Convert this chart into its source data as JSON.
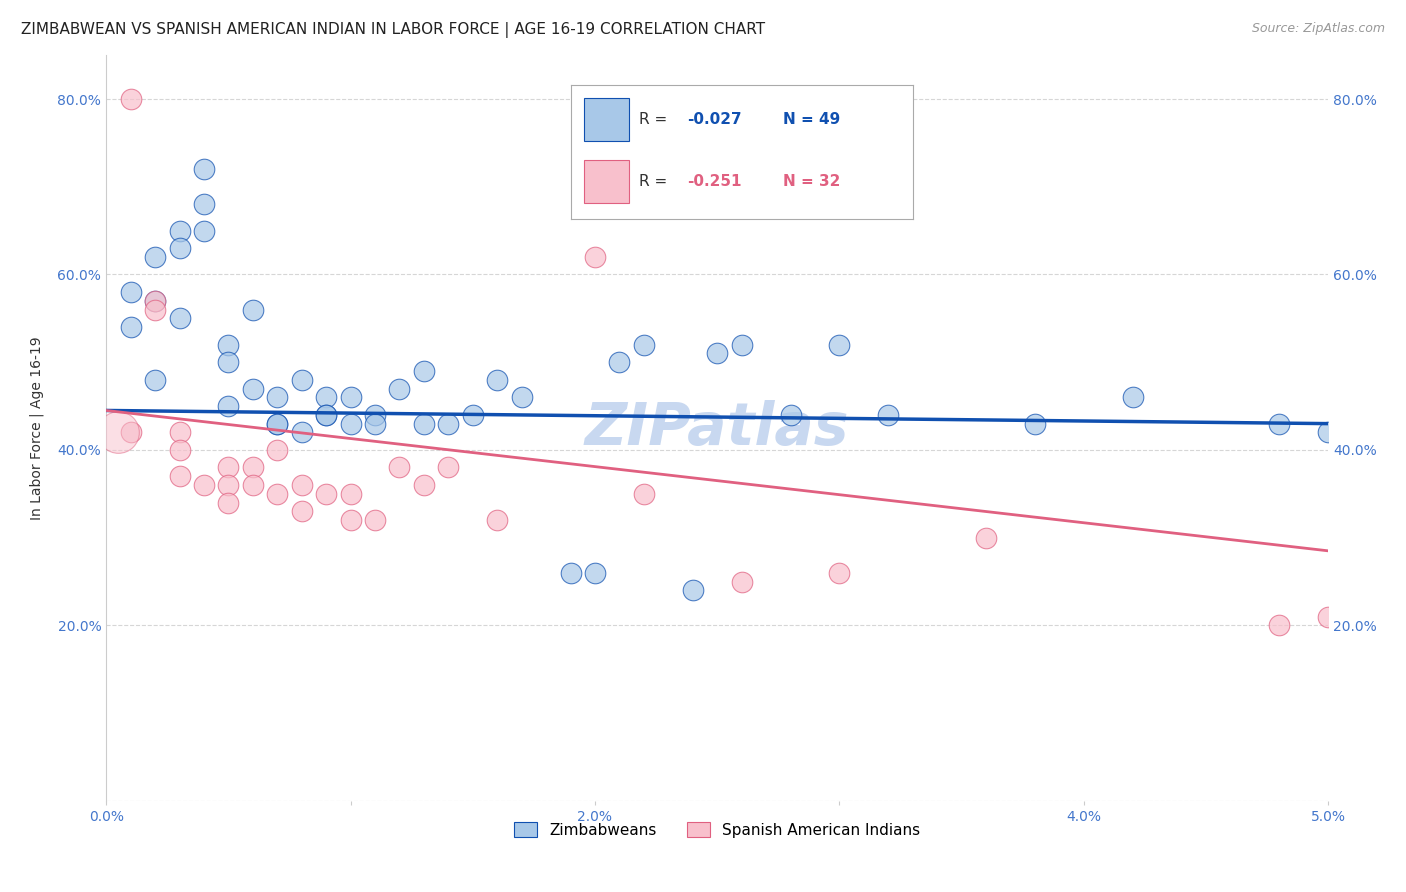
{
  "title": "ZIMBABWEAN VS SPANISH AMERICAN INDIAN IN LABOR FORCE | AGE 16-19 CORRELATION CHART",
  "source": "Source: ZipAtlas.com",
  "ylabel": "In Labor Force | Age 16-19",
  "xlim": [
    0.0,
    0.05
  ],
  "ylim": [
    0.0,
    0.85
  ],
  "yticks": [
    0.0,
    0.2,
    0.4,
    0.6,
    0.8
  ],
  "ytick_labels": [
    "",
    "20.0%",
    "40.0%",
    "60.0%",
    "80.0%"
  ],
  "xticks": [
    0.0,
    0.01,
    0.02,
    0.03,
    0.04,
    0.05
  ],
  "xtick_labels": [
    "0.0%",
    "",
    "2.0%",
    "",
    "4.0%",
    "5.0%"
  ],
  "color_zim": "#A8C8E8",
  "color_sai": "#F8C0CC",
  "line_color_zim": "#1050B0",
  "line_color_sai": "#E06080",
  "background_color": "#FFFFFF",
  "watermark": "ZIPatlas",
  "zim_x": [
    0.001,
    0.001,
    0.002,
    0.002,
    0.002,
    0.003,
    0.003,
    0.003,
    0.004,
    0.004,
    0.004,
    0.005,
    0.005,
    0.005,
    0.006,
    0.006,
    0.007,
    0.007,
    0.007,
    0.008,
    0.008,
    0.009,
    0.009,
    0.009,
    0.01,
    0.01,
    0.011,
    0.011,
    0.012,
    0.013,
    0.013,
    0.014,
    0.015,
    0.016,
    0.017,
    0.019,
    0.02,
    0.021,
    0.022,
    0.024,
    0.025,
    0.026,
    0.028,
    0.03,
    0.032,
    0.038,
    0.042,
    0.048,
    0.05
  ],
  "zim_y": [
    0.58,
    0.54,
    0.62,
    0.57,
    0.48,
    0.65,
    0.63,
    0.55,
    0.68,
    0.65,
    0.72,
    0.52,
    0.5,
    0.45,
    0.56,
    0.47,
    0.46,
    0.43,
    0.43,
    0.48,
    0.42,
    0.46,
    0.44,
    0.44,
    0.46,
    0.43,
    0.44,
    0.43,
    0.47,
    0.49,
    0.43,
    0.43,
    0.44,
    0.48,
    0.46,
    0.26,
    0.26,
    0.5,
    0.52,
    0.24,
    0.51,
    0.52,
    0.44,
    0.52,
    0.44,
    0.43,
    0.46,
    0.43,
    0.42
  ],
  "sai_x": [
    0.001,
    0.001,
    0.002,
    0.002,
    0.003,
    0.003,
    0.003,
    0.004,
    0.005,
    0.005,
    0.005,
    0.006,
    0.006,
    0.007,
    0.007,
    0.008,
    0.008,
    0.009,
    0.01,
    0.01,
    0.011,
    0.012,
    0.013,
    0.014,
    0.016,
    0.02,
    0.022,
    0.026,
    0.03,
    0.036,
    0.048,
    0.05
  ],
  "sai_y": [
    0.8,
    0.42,
    0.57,
    0.56,
    0.42,
    0.4,
    0.37,
    0.36,
    0.38,
    0.36,
    0.34,
    0.38,
    0.36,
    0.4,
    0.35,
    0.36,
    0.33,
    0.35,
    0.35,
    0.32,
    0.32,
    0.38,
    0.36,
    0.38,
    0.32,
    0.62,
    0.35,
    0.25,
    0.26,
    0.3,
    0.2,
    0.21
  ],
  "legend_bottom": [
    "Zimbabweans",
    "Spanish American Indians"
  ],
  "title_fontsize": 11,
  "tick_fontsize": 10,
  "watermark_color": "#C8D8F0",
  "tick_color": "#4477CC"
}
